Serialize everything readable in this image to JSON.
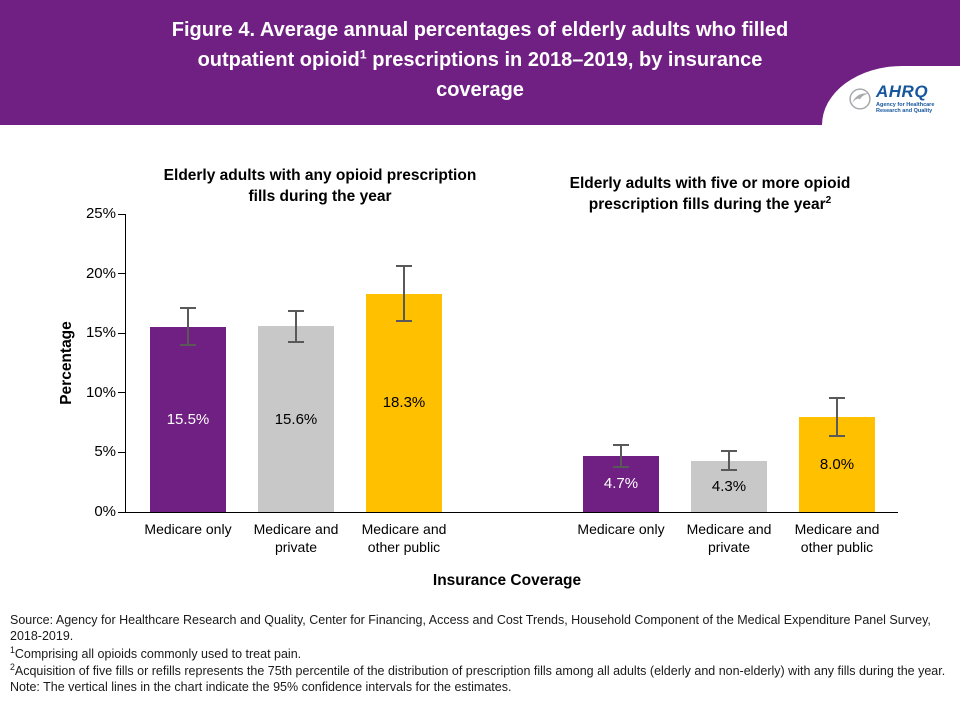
{
  "header": {
    "title_part1": "Figure 4. Average annual percentages of elderly adults who filled outpatient opioid",
    "title_sup": "1",
    "title_part2": " prescriptions in 2018–2019, by insurance coverage",
    "background_color": "#702082",
    "logo": {
      "name": "AHRQ",
      "tagline": "Agency for Healthcare Research and Quality"
    }
  },
  "chart_data": {
    "type": "bar",
    "title": "Figure 4. Average annual percentages of elderly adults who filled outpatient opioid prescriptions in 2018–2019, by insurance coverage",
    "xlabel": "Insurance Coverage",
    "ylabel": "Percentage",
    "ylim": [
      0,
      25
    ],
    "yticks": [
      0,
      5,
      10,
      15,
      20,
      25
    ],
    "ytick_labels": [
      "0%",
      "5%",
      "10%",
      "15%",
      "20%",
      "25%"
    ],
    "grid": "off",
    "legend": "none",
    "error_bars_note": "Vertical lines indicate 95% confidence intervals",
    "categories": [
      "Medicare only",
      "Medicare and private",
      "Medicare and other public"
    ],
    "bar_colors": [
      "#702082",
      "#c8c8c8",
      "#ffc000"
    ],
    "value_label_colors": [
      "#ffffff",
      "#000000",
      "#000000"
    ],
    "groups": [
      {
        "title_text": "Elderly adults with any opioid prescription fills during the year",
        "title_sup": "",
        "values": [
          15.5,
          15.6,
          18.3
        ],
        "value_labels": [
          "15.5%",
          "15.6%",
          "18.3%"
        ],
        "ci_low": [
          14.0,
          14.3,
          16.0
        ],
        "ci_high": [
          17.1,
          16.9,
          20.6
        ]
      },
      {
        "title_text": "Elderly adults with five or more opioid prescription fills during the year",
        "title_sup": "2",
        "values": [
          4.7,
          4.3,
          8.0
        ],
        "value_labels": [
          "4.7%",
          "4.3%",
          "8.0%"
        ],
        "ci_low": [
          3.8,
          3.5,
          6.4
        ],
        "ci_high": [
          5.6,
          5.1,
          9.6
        ]
      }
    ]
  },
  "footnotes": {
    "source": "Source: Agency for Healthcare Research and Quality, Center for Financing, Access and Cost Trends, Household Component of the Medical Expenditure Panel Survey, 2018-2019.",
    "fn1_sup": "1",
    "fn1_text": "Comprising all opioids commonly used to treat pain.",
    "fn2_sup": "2",
    "fn2_text": "Acquisition of five fills or refills represents the 75th percentile of the distribution of prescription fills among all adults (elderly and non-elderly) with any fills during the year.",
    "note": "Note: The vertical lines in the chart indicate the 95% confidence intervals for the estimates."
  }
}
